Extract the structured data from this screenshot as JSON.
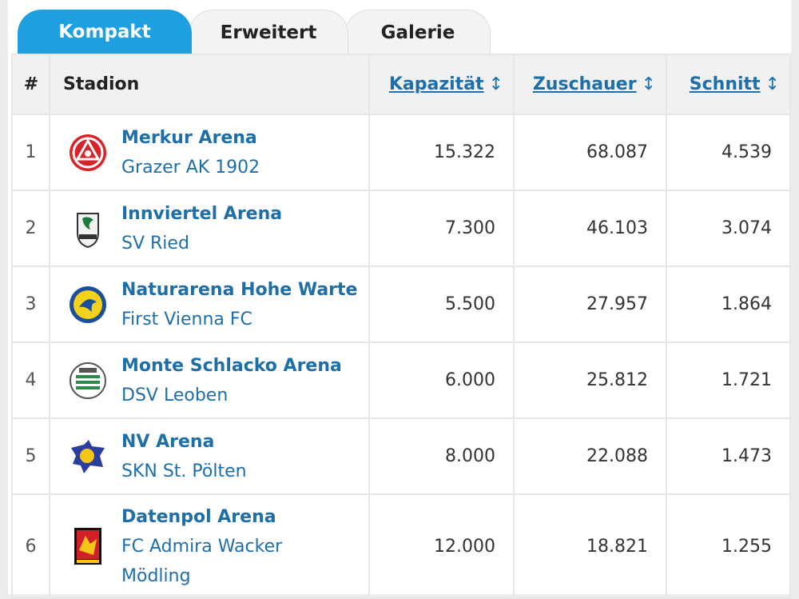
{
  "tabs": [
    {
      "label": "Kompakt",
      "active": true
    },
    {
      "label": "Erweitert",
      "active": false
    },
    {
      "label": "Galerie",
      "active": false
    }
  ],
  "table": {
    "headers": {
      "rank": "#",
      "stadion": "Stadion",
      "kapazitaet": "Kapazität",
      "zuschauer": "Zuschauer",
      "schnitt": "Schnitt",
      "sort_icon": "↕"
    },
    "rows": [
      {
        "rank": "1",
        "stadium": "Merkur Arena",
        "club": "Grazer AK 1902",
        "capacity": "15.322",
        "spectators": "68.087",
        "average": "4.539",
        "logo": "grazer-ak-logo"
      },
      {
        "rank": "2",
        "stadium": "Innviertel Arena",
        "club": "SV Ried",
        "capacity": "7.300",
        "spectators": "46.103",
        "average": "3.074",
        "logo": "sv-ried-logo"
      },
      {
        "rank": "3",
        "stadium": "Naturarena Hohe Warte",
        "club": "First Vienna FC",
        "capacity": "5.500",
        "spectators": "27.957",
        "average": "1.864",
        "logo": "first-vienna-logo"
      },
      {
        "rank": "4",
        "stadium": "Monte Schlacko Arena",
        "club": "DSV Leoben",
        "capacity": "6.000",
        "spectators": "25.812",
        "average": "1.721",
        "logo": "dsv-leoben-logo"
      },
      {
        "rank": "5",
        "stadium": "NV Arena",
        "club": "SKN St. Pölten",
        "capacity": "8.000",
        "spectators": "22.088",
        "average": "1.473",
        "logo": "skn-st-poelten-logo"
      },
      {
        "rank": "6",
        "stadium": "Datenpol Arena",
        "club": "FC Admira Wacker Mödling",
        "capacity": "12.000",
        "spectators": "18.821",
        "average": "1.255",
        "logo": "admira-wacker-logo"
      }
    ]
  }
}
